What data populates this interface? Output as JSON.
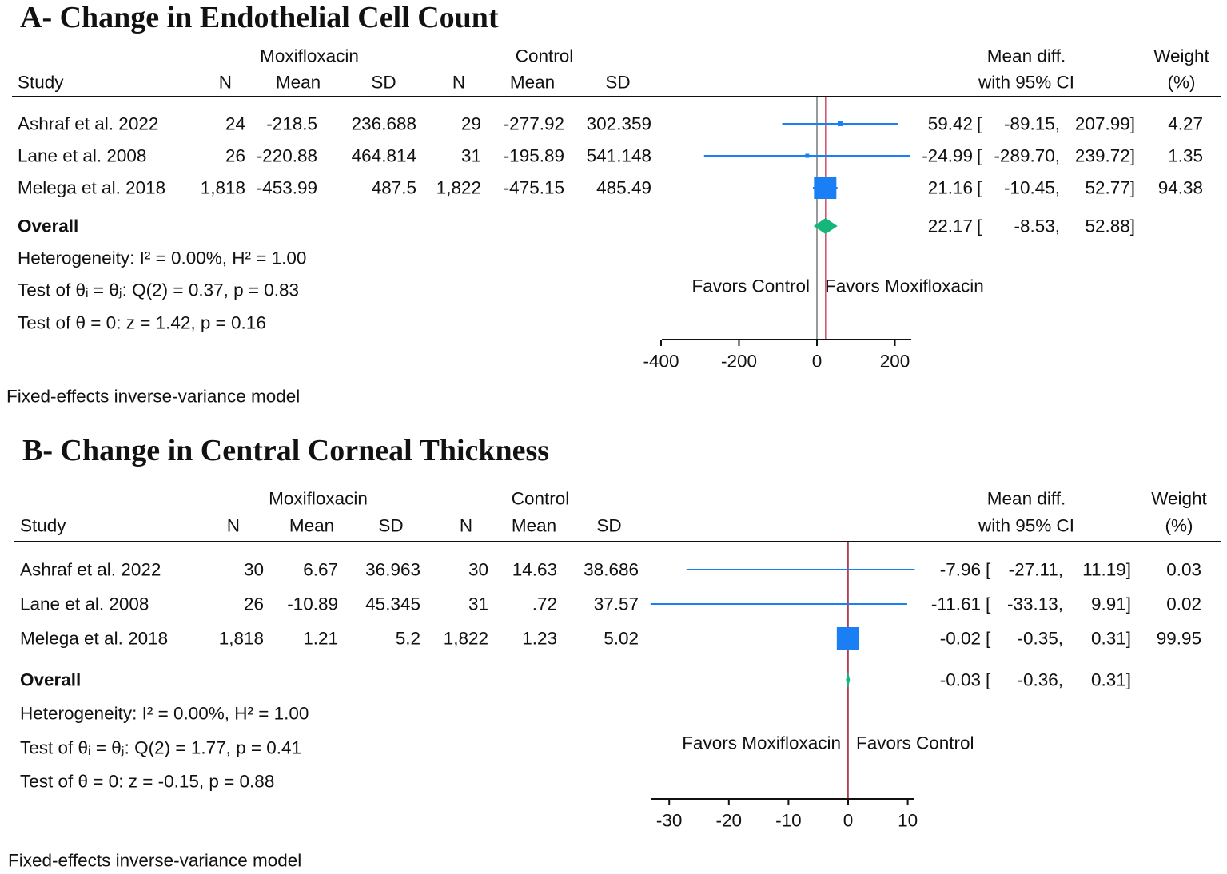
{
  "chart_data": [
    {
      "type": "forest",
      "title": "A- Change in Endothelial Cell Count",
      "group_headers": {
        "treatment": "Moxifloxacin",
        "control": "Control"
      },
      "column_headers": {
        "study": "Study",
        "n": "N",
        "mean": "Mean",
        "sd": "SD",
        "effect1": "Mean diff.",
        "effect2": "with 95% CI",
        "weight1": "Weight",
        "weight2": "(%)"
      },
      "studies": [
        {
          "study": "Ashraf et al. 2022",
          "t_n": "24",
          "t_mean": "-218.5",
          "t_sd": "236.688",
          "c_n": "29",
          "c_mean": "-277.92",
          "c_sd": "302.359",
          "md": 59.42,
          "lo": -89.15,
          "hi": 207.99,
          "md_text": "59.42",
          "lo_text": "-89.15,",
          "hi_text": "207.99]",
          "weight": 4.27,
          "weight_text": "4.27"
        },
        {
          "study": "Lane et al. 2008",
          "t_n": "26",
          "t_mean": "-220.88",
          "t_sd": "464.814",
          "c_n": "31",
          "c_mean": "-195.89",
          "c_sd": "541.148",
          "md": -24.99,
          "lo": -289.7,
          "hi": 239.72,
          "md_text": "-24.99",
          "lo_text": "-289.70,",
          "hi_text": "239.72]",
          "weight": 1.35,
          "weight_text": "1.35"
        },
        {
          "study": "Melega et al. 2018",
          "t_n": "1,818",
          "t_mean": "-453.99",
          "t_sd": "487.5",
          "c_n": "1,822",
          "c_mean": "-475.15",
          "c_sd": "485.49",
          "md": 21.16,
          "lo": -10.45,
          "hi": 52.77,
          "md_text": "21.16",
          "lo_text": "-10.45,",
          "hi_text": "52.77]",
          "weight": 94.38,
          "weight_text": "94.38"
        }
      ],
      "overall": {
        "label": "Overall",
        "md": 22.17,
        "lo": -8.53,
        "hi": 52.88,
        "md_text": "22.17",
        "lo_text": "-8.53,",
        "hi_text": "52.88]"
      },
      "stats": [
        "Heterogeneity: I² = 0.00%, H² = 1.00",
        "Test of θᵢ = θⱼ: Q(2) = 0.37, p = 0.83",
        "Test of θ = 0: z = 1.42, p = 0.16"
      ],
      "favors_left": "Favors Control",
      "favors_right": "Favors Moxifloxacin",
      "xlim": [
        -400,
        240
      ],
      "xticks": [
        -400,
        -200,
        0,
        200
      ],
      "xtick_labels": [
        "-400",
        "-200",
        "0",
        "200"
      ],
      "footnote": "Fixed-effects inverse-variance model"
    },
    {
      "type": "forest",
      "title": "B- Change in Central Corneal Thickness",
      "group_headers": {
        "treatment": "Moxifloxacin",
        "control": "Control"
      },
      "column_headers": {
        "study": "Study",
        "n": "N",
        "mean": "Mean",
        "sd": "SD",
        "effect1": "Mean diff.",
        "effect2": "with 95% CI",
        "weight1": "Weight",
        "weight2": "(%)"
      },
      "studies": [
        {
          "study": "Ashraf et al. 2022",
          "t_n": "30",
          "t_mean": "6.67",
          "t_sd": "36.963",
          "c_n": "30",
          "c_mean": "14.63",
          "c_sd": "38.686",
          "md": -7.96,
          "lo": -27.11,
          "hi": 11.19,
          "md_text": "-7.96",
          "lo_text": "-27.11,",
          "hi_text": "11.19]",
          "weight": 0.03,
          "weight_text": "0.03"
        },
        {
          "study": "Lane et al. 2008",
          "t_n": "26",
          "t_mean": "-10.89",
          "t_sd": "45.345",
          "c_n": "31",
          "c_mean": ".72",
          "c_sd": "37.57",
          "md": -11.61,
          "lo": -33.13,
          "hi": 9.91,
          "md_text": "-11.61",
          "lo_text": "-33.13,",
          "hi_text": "9.91]",
          "weight": 0.02,
          "weight_text": "0.02"
        },
        {
          "study": "Melega et al. 2018",
          "t_n": "1,818",
          "t_mean": "1.21",
          "t_sd": "5.2",
          "c_n": "1,822",
          "c_mean": "1.23",
          "c_sd": "5.02",
          "md": -0.02,
          "lo": -0.35,
          "hi": 0.31,
          "md_text": "-0.02",
          "lo_text": "-0.35,",
          "hi_text": "0.31]",
          "weight": 99.95,
          "weight_text": "99.95"
        }
      ],
      "overall": {
        "label": "Overall",
        "md": -0.03,
        "lo": -0.36,
        "hi": 0.31,
        "md_text": "-0.03",
        "lo_text": "-0.36,",
        "hi_text": "0.31]"
      },
      "stats": [
        "Heterogeneity: I² = 0.00%, H² = 1.00",
        "Test of θᵢ = θⱼ: Q(2) = 1.77, p = 0.41",
        "Test of θ = 0: z = -0.15, p = 0.88"
      ],
      "favors_left": "Favors Moxifloxacin",
      "favors_right": "Favors Control",
      "xlim": [
        -33.13,
        11.19
      ],
      "xticks": [
        -30,
        -20,
        -10,
        0,
        10
      ],
      "xtick_labels": [
        "-30",
        "-20",
        "-10",
        "0",
        "10"
      ],
      "footnote": "Fixed-effects inverse-variance model"
    }
  ],
  "colors": {
    "marker": "#1a7ff5",
    "ci_line": "#1a7ff5",
    "diamond": "#16b67a",
    "null_line": "#999999",
    "overall_line": "#c8213f",
    "text": "#111111"
  },
  "bracket": "["
}
